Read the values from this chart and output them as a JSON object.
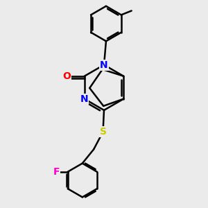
{
  "background_color": "#ebebeb",
  "bond_color": "#000000",
  "bond_width": 1.8,
  "atom_colors": {
    "N": "#0000ff",
    "O": "#ff0000",
    "S": "#cccc00",
    "F": "#ff00cc",
    "C": "#000000"
  },
  "font_size_atom": 10,
  "figsize": [
    3.0,
    3.0
  ],
  "dpi": 100
}
